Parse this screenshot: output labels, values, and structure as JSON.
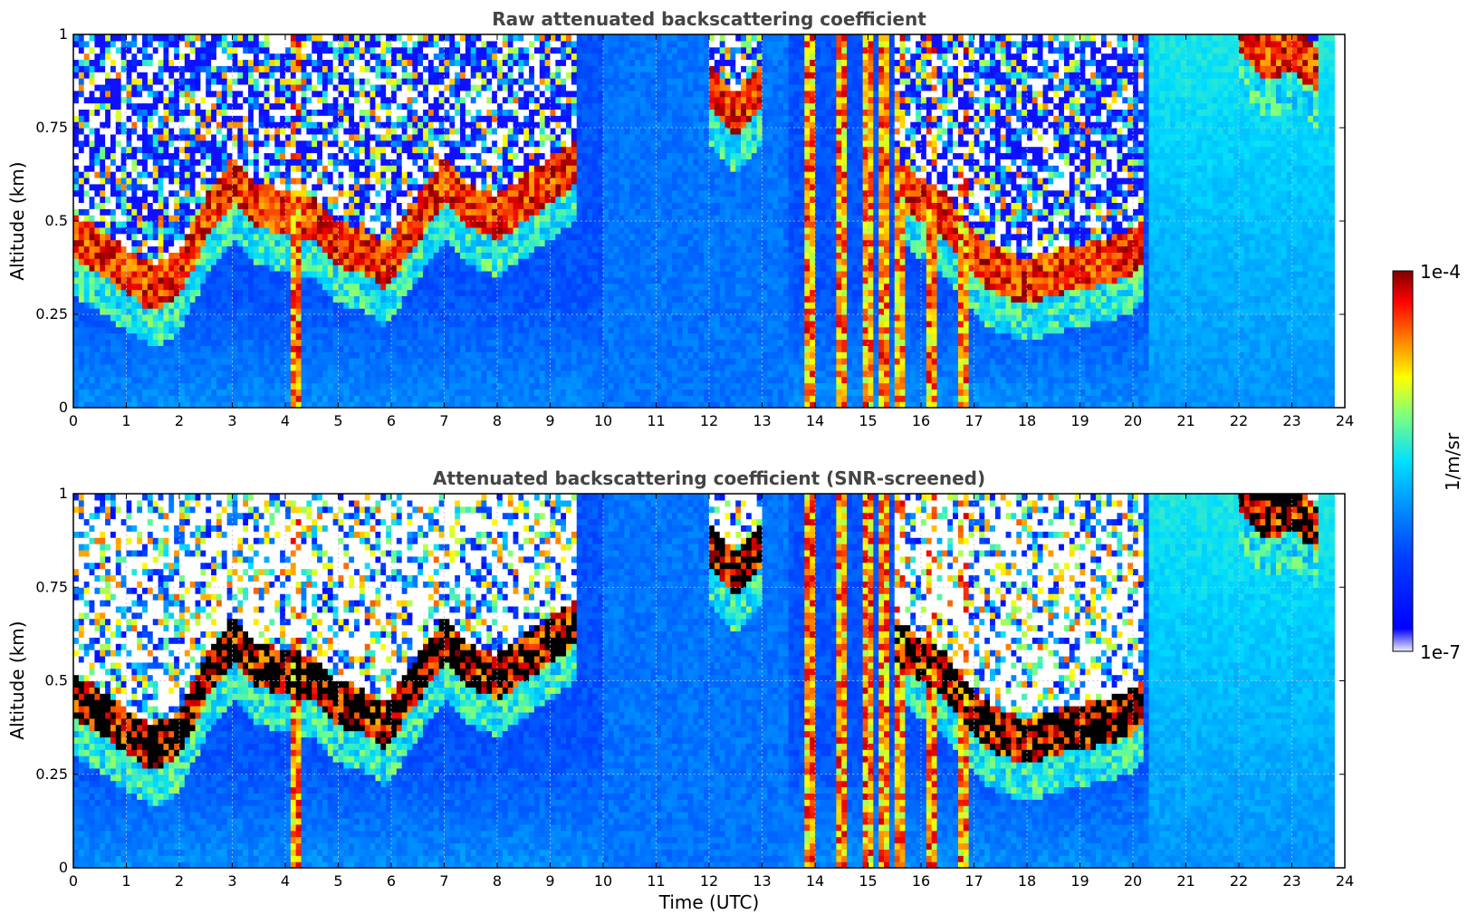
{
  "chart_data": [
    {
      "type": "heatmap",
      "title": "Raw attenuated backscattering coefficient",
      "xlabel": "",
      "ylabel": "Altitude (km)",
      "xlim": [
        0,
        24
      ],
      "ylim": [
        0,
        1
      ],
      "xticks": [
        "0",
        "1",
        "2",
        "3",
        "4",
        "5",
        "6",
        "7",
        "8",
        "9",
        "10",
        "11",
        "12",
        "13",
        "14",
        "15",
        "16",
        "17",
        "18",
        "19",
        "20",
        "21",
        "22",
        "23",
        "24"
      ],
      "yticks": [
        "0",
        "0.25",
        "0.5",
        "0.75",
        "1"
      ],
      "grid": true,
      "screened": false,
      "data_end_hour": 23.8,
      "cloud_base_km": [
        [
          0.0,
          0.4
        ],
        [
          0.5,
          0.36
        ],
        [
          1.0,
          0.31
        ],
        [
          1.5,
          0.26
        ],
        [
          2.0,
          0.3
        ],
        [
          2.5,
          0.45
        ],
        [
          3.0,
          0.55
        ],
        [
          3.5,
          0.48
        ],
        [
          4.5,
          0.45
        ],
        [
          5.0,
          0.38
        ],
        [
          5.5,
          0.36
        ],
        [
          5.9,
          0.32
        ],
        [
          7.0,
          0.55
        ],
        [
          7.5,
          0.48
        ],
        [
          8.0,
          0.45
        ],
        [
          8.5,
          0.5
        ],
        [
          9.0,
          0.55
        ],
        [
          9.5,
          0.6
        ],
        [
          12.0,
          0.8
        ],
        [
          12.5,
          0.72
        ],
        [
          13.0,
          0.8
        ],
        [
          15.5,
          0.55
        ],
        [
          16.0,
          0.5
        ],
        [
          16.5,
          0.45
        ],
        [
          17.0,
          0.35
        ],
        [
          17.5,
          0.3
        ],
        [
          18.0,
          0.28
        ],
        [
          18.5,
          0.3
        ],
        [
          19.0,
          0.32
        ],
        [
          19.5,
          0.33
        ],
        [
          20.0,
          0.36
        ],
        [
          20.2,
          0.38
        ],
        [
          22.0,
          0.95
        ],
        [
          22.5,
          0.88
        ],
        [
          23.0,
          0.9
        ],
        [
          23.5,
          0.85
        ]
      ],
      "vertical_streaks_hour": [
        4.2,
        13.9,
        14.5,
        15.0,
        15.3,
        15.6,
        16.2,
        16.8
      ]
    },
    {
      "type": "heatmap",
      "title": "Attenuated backscattering coefficient (SNR-screened)",
      "xlabel": "Time (UTC)",
      "ylabel": "Altitude (km)",
      "xlim": [
        0,
        24
      ],
      "ylim": [
        0,
        1
      ],
      "xticks": [
        "0",
        "1",
        "2",
        "3",
        "4",
        "5",
        "6",
        "7",
        "8",
        "9",
        "10",
        "11",
        "12",
        "13",
        "14",
        "15",
        "16",
        "17",
        "18",
        "19",
        "20",
        "21",
        "22",
        "23",
        "24"
      ],
      "yticks": [
        "0",
        "0.25",
        "0.5",
        "0.75",
        "1"
      ],
      "grid": true,
      "screened": true,
      "data_end_hour": 23.8,
      "cloud_base_km": [
        [
          0.0,
          0.4
        ],
        [
          0.5,
          0.36
        ],
        [
          1.0,
          0.31
        ],
        [
          1.5,
          0.26
        ],
        [
          2.0,
          0.3
        ],
        [
          2.5,
          0.45
        ],
        [
          3.0,
          0.55
        ],
        [
          3.5,
          0.48
        ],
        [
          4.5,
          0.45
        ],
        [
          5.0,
          0.38
        ],
        [
          5.5,
          0.36
        ],
        [
          5.9,
          0.32
        ],
        [
          7.0,
          0.55
        ],
        [
          7.5,
          0.48
        ],
        [
          8.0,
          0.45
        ],
        [
          8.5,
          0.5
        ],
        [
          9.0,
          0.55
        ],
        [
          9.5,
          0.6
        ],
        [
          12.0,
          0.8
        ],
        [
          12.5,
          0.72
        ],
        [
          13.0,
          0.8
        ],
        [
          15.5,
          0.55
        ],
        [
          16.0,
          0.5
        ],
        [
          16.5,
          0.45
        ],
        [
          17.0,
          0.35
        ],
        [
          17.5,
          0.3
        ],
        [
          18.0,
          0.28
        ],
        [
          18.5,
          0.3
        ],
        [
          19.0,
          0.32
        ],
        [
          19.5,
          0.33
        ],
        [
          20.0,
          0.36
        ],
        [
          20.2,
          0.38
        ],
        [
          22.0,
          0.95
        ],
        [
          22.5,
          0.88
        ],
        [
          23.0,
          0.9
        ],
        [
          23.5,
          0.85
        ]
      ],
      "vertical_streaks_hour": [
        4.2,
        13.9,
        14.5,
        15.0,
        15.3,
        15.6,
        16.2,
        16.8
      ]
    }
  ],
  "colorbar": {
    "max_label": "1e-4",
    "min_label": "1e-7",
    "unit_label": "1/m/sr",
    "colormap": "jet",
    "min_color": "#eeeeff",
    "max_color": "#7f0000"
  }
}
